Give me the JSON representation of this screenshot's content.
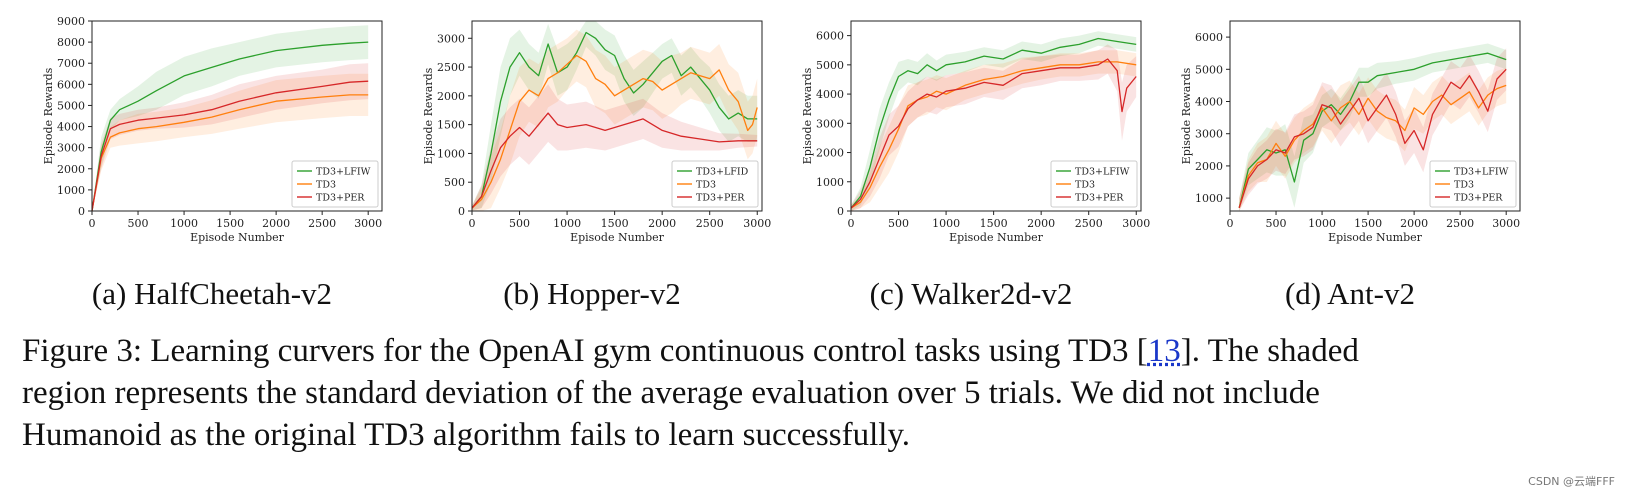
{
  "figure": {
    "caption_line1_pre": "Figure 3: Learning curvers for the OpenAI gym continuous control tasks using TD3 [",
    "caption_ref": "13",
    "caption_line1_post": "]. The shaded",
    "caption_line2": "region represents the standard deviation of the average evaluation over 5 trials. We did not include",
    "caption_line3": "Humanoid as the original TD3 algorithm fails to learn successfully."
  },
  "watermark": "CSDN @云端FFF",
  "colors": {
    "green": "#2ca02c",
    "orange": "#ff7f0e",
    "red": "#d62728"
  },
  "chart_data": [
    {
      "type": "line",
      "subcaption": "(a) HalfCheetah-v2",
      "xlabel": "Episode Number",
      "ylabel": "Episode Rewards",
      "xlim": [
        0,
        3150
      ],
      "ylim": [
        0,
        9000
      ],
      "xticks": [
        0,
        500,
        1000,
        1500,
        2000,
        2500,
        3000
      ],
      "yticks": [
        0,
        1000,
        2000,
        3000,
        4000,
        5000,
        6000,
        7000,
        8000,
        9000
      ],
      "legend_position": "bottom-right",
      "grid": false,
      "series": [
        {
          "name": "TD3+LFIW",
          "color": "#2ca02c",
          "x": [
            0,
            100,
            200,
            300,
            500,
            700,
            1000,
            1300,
            1600,
            2000,
            2500,
            2800,
            3000
          ],
          "y": [
            0,
            2800,
            4300,
            4800,
            5200,
            5700,
            6400,
            6800,
            7200,
            7600,
            7850,
            7950,
            8000
          ],
          "std": [
            0,
            700,
            500,
            500,
            700,
            900,
            900,
            900,
            800,
            800,
            800,
            800,
            800
          ]
        },
        {
          "name": "TD3",
          "color": "#ff7f0e",
          "x": [
            0,
            100,
            200,
            300,
            500,
            700,
            1000,
            1300,
            1600,
            2000,
            2500,
            2800,
            3000
          ],
          "y": [
            0,
            2500,
            3500,
            3700,
            3900,
            4000,
            4200,
            4450,
            4800,
            5200,
            5400,
            5500,
            5500
          ],
          "std": [
            0,
            600,
            500,
            600,
            700,
            700,
            700,
            800,
            900,
            1000,
            1000,
            1000,
            1000
          ]
        },
        {
          "name": "TD3+PER",
          "color": "#d62728",
          "x": [
            0,
            100,
            200,
            300,
            500,
            700,
            1000,
            1300,
            1600,
            2000,
            2500,
            2800,
            3000
          ],
          "y": [
            0,
            2600,
            3900,
            4100,
            4300,
            4400,
            4550,
            4800,
            5200,
            5600,
            5900,
            6100,
            6150
          ],
          "std": [
            0,
            600,
            500,
            500,
            500,
            500,
            600,
            700,
            800,
            800,
            800,
            850,
            850
          ]
        }
      ]
    },
    {
      "type": "line",
      "subcaption": "(b) Hopper-v2",
      "xlabel": "Episode Number",
      "ylabel": "Episode Rewards",
      "xlim": [
        0,
        3050
      ],
      "ylim": [
        0,
        3300
      ],
      "xticks": [
        0,
        500,
        1000,
        1500,
        2000,
        2500,
        3000
      ],
      "yticks": [
        0,
        500,
        1000,
        1500,
        2000,
        2500,
        3000
      ],
      "legend_position": "bottom-right",
      "grid": false,
      "series": [
        {
          "name": "TD3+LFID",
          "color": "#2ca02c",
          "x": [
            0,
            100,
            200,
            300,
            400,
            500,
            600,
            700,
            800,
            900,
            1000,
            1100,
            1200,
            1300,
            1400,
            1500,
            1600,
            1700,
            1800,
            1900,
            2000,
            2100,
            2200,
            2300,
            2400,
            2500,
            2600,
            2700,
            2800,
            2900,
            3000
          ],
          "y": [
            50,
            250,
            1000,
            1900,
            2500,
            2750,
            2500,
            2350,
            2900,
            2400,
            2500,
            2750,
            3100,
            3000,
            2800,
            2700,
            2300,
            2050,
            2200,
            2400,
            2600,
            2700,
            2350,
            2500,
            2300,
            2100,
            1800,
            1600,
            1700,
            1600,
            1600
          ],
          "std": [
            40,
            200,
            500,
            600,
            500,
            400,
            400,
            400,
            350,
            400,
            400,
            300,
            250,
            300,
            350,
            350,
            400,
            400,
            400,
            350,
            300,
            300,
            350,
            350,
            350,
            400,
            400,
            400,
            400,
            400,
            400
          ]
        },
        {
          "name": "TD3",
          "color": "#ff7f0e",
          "x": [
            0,
            100,
            200,
            300,
            400,
            500,
            600,
            700,
            800,
            900,
            1000,
            1100,
            1200,
            1300,
            1400,
            1500,
            1600,
            1700,
            1800,
            1900,
            2000,
            2100,
            2200,
            2300,
            2400,
            2500,
            2600,
            2700,
            2800,
            2900,
            2950,
            3000
          ],
          "y": [
            50,
            200,
            500,
            900,
            1400,
            1900,
            2100,
            2000,
            2300,
            2400,
            2550,
            2700,
            2600,
            2300,
            2200,
            2000,
            2100,
            2200,
            2300,
            2250,
            2100,
            2200,
            2300,
            2400,
            2350,
            2300,
            2450,
            2100,
            1900,
            1400,
            1500,
            1800
          ],
          "std": [
            40,
            200,
            450,
            500,
            600,
            600,
            550,
            550,
            500,
            500,
            450,
            450,
            450,
            500,
            500,
            500,
            500,
            500,
            500,
            500,
            500,
            500,
            450,
            450,
            450,
            450,
            450,
            450,
            500,
            500,
            500,
            500
          ]
        },
        {
          "name": "TD3+PER",
          "color": "#d62728",
          "x": [
            0,
            100,
            200,
            300,
            400,
            500,
            600,
            700,
            800,
            900,
            1000,
            1200,
            1400,
            1600,
            1800,
            2000,
            2200,
            2400,
            2600,
            2800,
            3000
          ],
          "y": [
            50,
            250,
            700,
            1100,
            1300,
            1450,
            1300,
            1500,
            1700,
            1500,
            1450,
            1500,
            1400,
            1500,
            1600,
            1400,
            1300,
            1250,
            1200,
            1220,
            1220
          ],
          "std": [
            40,
            200,
            400,
            500,
            500,
            500,
            500,
            500,
            500,
            450,
            400,
            400,
            350,
            350,
            350,
            300,
            250,
            200,
            150,
            120,
            100
          ]
        }
      ]
    },
    {
      "type": "line",
      "subcaption": "(c) Walker2d-v2",
      "xlabel": "Episode Number",
      "ylabel": "Episode Rewards",
      "xlim": [
        0,
        3050
      ],
      "ylim": [
        0,
        6500
      ],
      "xticks": [
        0,
        500,
        1000,
        1500,
        2000,
        2500,
        3000
      ],
      "yticks": [
        0,
        1000,
        2000,
        3000,
        4000,
        5000,
        6000
      ],
      "legend_position": "bottom-right",
      "grid": false,
      "series": [
        {
          "name": "TD3+LFIW",
          "color": "#2ca02c",
          "x": [
            0,
            100,
            200,
            300,
            400,
            500,
            600,
            700,
            800,
            900,
            1000,
            1200,
            1400,
            1600,
            1800,
            2000,
            2200,
            2400,
            2600,
            2800,
            3000
          ],
          "y": [
            100,
            500,
            1500,
            2800,
            3800,
            4600,
            4800,
            4700,
            5000,
            4800,
            5000,
            5100,
            5300,
            5200,
            5500,
            5400,
            5600,
            5700,
            5900,
            5800,
            5700
          ],
          "std": [
            100,
            300,
            600,
            700,
            600,
            500,
            400,
            400,
            400,
            350,
            350,
            350,
            300,
            300,
            300,
            300,
            300,
            300,
            250,
            250,
            250
          ]
        },
        {
          "name": "TD3",
          "color": "#ff7f0e",
          "x": [
            0,
            100,
            200,
            300,
            400,
            500,
            600,
            700,
            800,
            900,
            1000,
            1200,
            1400,
            1600,
            1800,
            2000,
            2200,
            2400,
            2600,
            2800,
            3000
          ],
          "y": [
            100,
            300,
            800,
            1500,
            2100,
            2800,
            3600,
            3800,
            3900,
            4100,
            4000,
            4300,
            4500,
            4600,
            4800,
            4900,
            5000,
            5000,
            5100,
            5100,
            5000
          ],
          "std": [
            100,
            200,
            500,
            700,
            800,
            800,
            700,
            600,
            600,
            550,
            550,
            500,
            500,
            450,
            450,
            400,
            400,
            400,
            400,
            400,
            400
          ]
        },
        {
          "name": "TD3+PER",
          "color": "#d62728",
          "x": [
            0,
            100,
            200,
            300,
            400,
            500,
            600,
            700,
            800,
            900,
            1000,
            1200,
            1400,
            1600,
            1800,
            2000,
            2200,
            2400,
            2600,
            2700,
            2800,
            2850,
            2900,
            3000
          ],
          "y": [
            100,
            400,
            1000,
            1800,
            2600,
            2900,
            3500,
            3800,
            4000,
            3900,
            4100,
            4200,
            4400,
            4300,
            4700,
            4800,
            4900,
            4900,
            5000,
            5200,
            4800,
            3400,
            4200,
            4600
          ],
          "std": [
            100,
            300,
            500,
            700,
            700,
            700,
            600,
            600,
            600,
            600,
            550,
            550,
            500,
            500,
            500,
            500,
            450,
            450,
            500,
            500,
            700,
            1000,
            800,
            700
          ]
        }
      ]
    },
    {
      "type": "line",
      "subcaption": "(d) Ant-v2",
      "xlabel": "Episode Number",
      "ylabel": "Episode Rewards",
      "xlim": [
        0,
        3150
      ],
      "ylim": [
        600,
        6500
      ],
      "xticks": [
        0,
        500,
        1000,
        1500,
        2000,
        2500,
        3000
      ],
      "yticks": [
        1000,
        2000,
        3000,
        4000,
        5000,
        6000
      ],
      "legend_position": "bottom-right",
      "grid": false,
      "series": [
        {
          "name": "TD3+LFIW",
          "color": "#2ca02c",
          "x": [
            100,
            200,
            300,
            400,
            500,
            600,
            700,
            800,
            900,
            1000,
            1100,
            1200,
            1300,
            1400,
            1500,
            1600,
            1800,
            2000,
            2200,
            2400,
            2600,
            2800,
            3000
          ],
          "y": [
            700,
            1900,
            2200,
            2500,
            2400,
            2500,
            1500,
            2800,
            3000,
            3700,
            3900,
            3600,
            4000,
            4600,
            4600,
            4800,
            4900,
            5000,
            5200,
            5300,
            5400,
            5500,
            5300
          ],
          "std": [
            300,
            500,
            600,
            700,
            700,
            800,
            800,
            700,
            600,
            500,
            500,
            500,
            500,
            450,
            450,
            400,
            350,
            350,
            300,
            300,
            300,
            300,
            300
          ]
        },
        {
          "name": "TD3",
          "color": "#ff7f0e",
          "x": [
            100,
            200,
            300,
            400,
            500,
            600,
            700,
            800,
            900,
            1000,
            1100,
            1200,
            1300,
            1400,
            1500,
            1600,
            1700,
            1800,
            1900,
            2000,
            2100,
            2200,
            2300,
            2400,
            2500,
            2600,
            2700,
            2800,
            2900,
            3000
          ],
          "y": [
            700,
            1700,
            2100,
            2200,
            2700,
            2300,
            2800,
            3100,
            3300,
            3800,
            3400,
            3800,
            4000,
            3600,
            4100,
            3700,
            3500,
            3400,
            3100,
            3800,
            3600,
            4000,
            4200,
            3900,
            4100,
            4300,
            3800,
            4200,
            4400,
            4500
          ],
          "std": [
            300,
            500,
            600,
            700,
            700,
            700,
            700,
            700,
            700,
            700,
            700,
            700,
            650,
            650,
            650,
            650,
            650,
            650,
            650,
            650,
            600,
            600,
            600,
            600,
            600,
            600,
            550,
            550,
            550,
            550
          ]
        },
        {
          "name": "TD3+PER",
          "color": "#d62728",
          "x": [
            100,
            200,
            300,
            400,
            500,
            600,
            700,
            800,
            900,
            1000,
            1100,
            1200,
            1300,
            1400,
            1500,
            1600,
            1700,
            1800,
            1900,
            2000,
            2100,
            2200,
            2300,
            2400,
            2500,
            2600,
            2700,
            2800,
            2900,
            3000
          ],
          "y": [
            700,
            1600,
            2000,
            2200,
            2500,
            2400,
            2900,
            3000,
            3200,
            3900,
            3800,
            3300,
            3700,
            4100,
            3400,
            3800,
            4200,
            3600,
            2700,
            3100,
            2500,
            3600,
            4100,
            4600,
            4400,
            4800,
            4300,
            3700,
            4700,
            5000
          ],
          "std": [
            300,
            500,
            550,
            600,
            650,
            650,
            700,
            700,
            700,
            700,
            700,
            700,
            700,
            700,
            700,
            700,
            700,
            700,
            700,
            700,
            700,
            650,
            650,
            650,
            650,
            650,
            650,
            650,
            650,
            650
          ]
        }
      ]
    }
  ]
}
